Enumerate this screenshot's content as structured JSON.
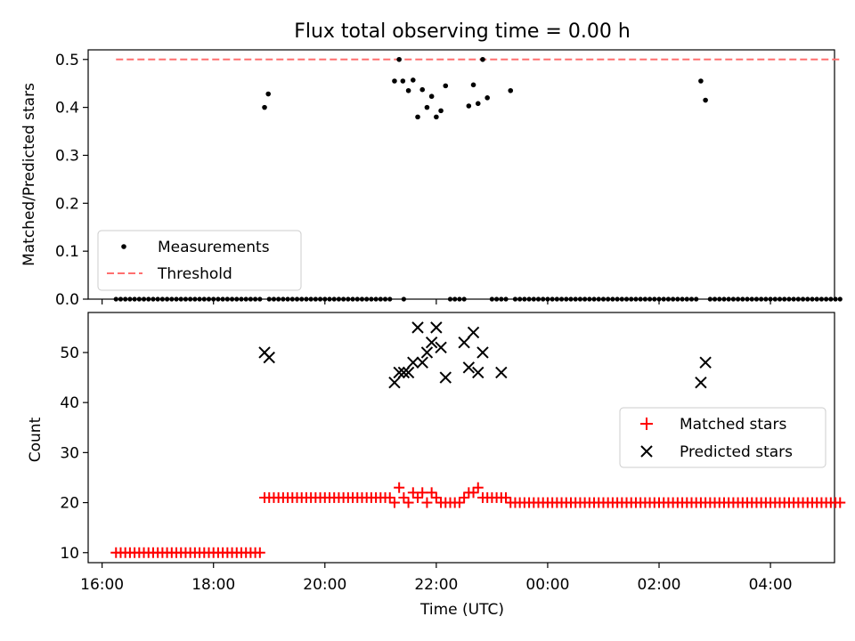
{
  "chart_data": {
    "type": "scatter",
    "title": "Flux total observing time = 0.00 h",
    "x_axis": {
      "label": "Time (UTC)",
      "range": [
        "16:00",
        "05:00"
      ],
      "tick_labels": [
        "16:00",
        "18:00",
        "20:00",
        "22:00",
        "00:00",
        "02:00",
        "04:00"
      ]
    },
    "colors": {
      "measurements": "#000000",
      "threshold": "#ff6f6f",
      "matched": "#ff0000",
      "predicted": "#000000"
    },
    "panels": [
      {
        "id": "ratio",
        "ylabel": "Matched/Predicted stars",
        "ylim": [
          0,
          0.52
        ],
        "y_ticks": [
          "0.0",
          "0.1",
          "0.2",
          "0.3",
          "0.4",
          "0.5"
        ],
        "legend": {
          "placement": "lower-left",
          "entries": [
            "Measurements",
            "Threshold"
          ]
        },
        "series": [
          {
            "name": "Measurements",
            "marker": "dot",
            "zero_start": "16:15",
            "zero_end": "05:15",
            "zero_interval_minutes": 5,
            "points": [
              [
                "18:55",
                0.4
              ],
              [
                "18:59",
                0.428
              ],
              [
                "21:15",
                0.455
              ],
              [
                "21:20",
                0.5
              ],
              [
                "21:24",
                0.455
              ],
              [
                "21:30",
                0.435
              ],
              [
                "21:35",
                0.457
              ],
              [
                "21:40",
                0.38
              ],
              [
                "21:45",
                0.437
              ],
              [
                "21:50",
                0.4
              ],
              [
                "21:55",
                0.423
              ],
              [
                "22:00",
                0.38
              ],
              [
                "22:05",
                0.393
              ],
              [
                "22:10",
                0.445
              ],
              [
                "22:35",
                0.403
              ],
              [
                "22:40",
                0.447
              ],
              [
                "22:45",
                0.408
              ],
              [
                "22:50",
                0.5
              ],
              [
                "22:55",
                0.42
              ],
              [
                "23:20",
                0.435
              ],
              [
                "02:45",
                0.455
              ],
              [
                "02:50",
                0.415
              ]
            ]
          },
          {
            "name": "Threshold",
            "style": "dashed",
            "x_start": "16:15",
            "x_end": "05:15",
            "y": 0.5
          }
        ]
      },
      {
        "id": "counts",
        "ylabel": "Count",
        "ylim": [
          8,
          58
        ],
        "y_ticks": [
          "10",
          "20",
          "30",
          "40",
          "50"
        ],
        "legend": {
          "placement": "center-right",
          "entries": [
            "Matched stars",
            "Predicted stars"
          ]
        },
        "series": [
          {
            "name": "Matched stars",
            "marker": "plus",
            "segments": [
              {
                "start": "16:15",
                "end": "18:50",
                "y": 10
              },
              {
                "start": "18:55",
                "end": "21:10",
                "y": 21
              },
              {
                "start": "23:20",
                "end": "05:15",
                "y": 20
              }
            ],
            "points": [
              [
                "21:15",
                20
              ],
              [
                "21:20",
                23
              ],
              [
                "21:25",
                21
              ],
              [
                "21:30",
                20
              ],
              [
                "21:35",
                22
              ],
              [
                "21:40",
                21
              ],
              [
                "21:45",
                22
              ],
              [
                "21:50",
                20
              ],
              [
                "21:55",
                22
              ],
              [
                "22:00",
                21
              ],
              [
                "22:05",
                20
              ],
              [
                "22:10",
                20
              ],
              [
                "22:15",
                20
              ],
              [
                "22:20",
                20
              ],
              [
                "22:25",
                20
              ],
              [
                "22:30",
                21
              ],
              [
                "22:35",
                22
              ],
              [
                "22:40",
                22
              ],
              [
                "22:45",
                23
              ],
              [
                "22:50",
                21
              ],
              [
                "22:55",
                21
              ],
              [
                "23:00",
                21
              ],
              [
                "23:05",
                21
              ],
              [
                "23:10",
                21
              ],
              [
                "23:15",
                21
              ]
            ]
          },
          {
            "name": "Predicted stars",
            "marker": "x",
            "points": [
              [
                "18:55",
                50
              ],
              [
                "19:00",
                49
              ],
              [
                "21:15",
                44
              ],
              [
                "21:20",
                46
              ],
              [
                "21:25",
                46
              ],
              [
                "21:30",
                46
              ],
              [
                "21:35",
                48
              ],
              [
                "21:40",
                55
              ],
              [
                "21:45",
                48
              ],
              [
                "21:50",
                50
              ],
              [
                "21:55",
                52
              ],
              [
                "22:00",
                55
              ],
              [
                "22:05",
                51
              ],
              [
                "22:10",
                45
              ],
              [
                "22:30",
                52
              ],
              [
                "22:35",
                47
              ],
              [
                "22:40",
                54
              ],
              [
                "22:45",
                46
              ],
              [
                "22:50",
                50
              ],
              [
                "23:10",
                46
              ],
              [
                "02:45",
                44
              ],
              [
                "02:50",
                48
              ]
            ]
          }
        ]
      }
    ]
  }
}
